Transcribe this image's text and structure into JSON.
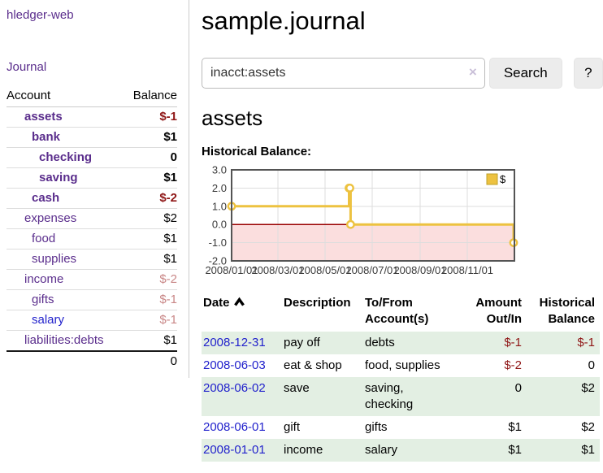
{
  "sidebar": {
    "brand": "hledger-web",
    "journal_label": "Journal",
    "accounts_table": {
      "headers": {
        "account": "Account",
        "balance": "Balance"
      },
      "rows": [
        {
          "name": "assets",
          "indent": 1,
          "bold": true,
          "link": "purple",
          "balance": "$-1",
          "tone": "neg"
        },
        {
          "name": "bank",
          "indent": 2,
          "bold": true,
          "link": "purple",
          "balance": "$1",
          "tone": null
        },
        {
          "name": "checking",
          "indent": 3,
          "bold": true,
          "link": "purple",
          "balance": "0",
          "tone": null
        },
        {
          "name": "saving",
          "indent": 3,
          "bold": true,
          "link": "purple",
          "balance": "$1",
          "tone": null
        },
        {
          "name": "cash",
          "indent": 2,
          "bold": true,
          "link": "purple",
          "balance": "$-2",
          "tone": "neg"
        },
        {
          "name": "expenses",
          "indent": 1,
          "bold": false,
          "link": "purple",
          "balance": "$2",
          "tone": null
        },
        {
          "name": "food",
          "indent": 2,
          "bold": false,
          "link": "purple",
          "balance": "$1",
          "tone": null
        },
        {
          "name": "supplies",
          "indent": 2,
          "bold": false,
          "link": "purple",
          "balance": "$1",
          "tone": null
        },
        {
          "name": "income",
          "indent": 1,
          "bold": false,
          "link": "purple",
          "balance": "$-2",
          "tone": "negsoft"
        },
        {
          "name": "gifts",
          "indent": 2,
          "bold": false,
          "link": "purple",
          "balance": "$-1",
          "tone": "negsoft"
        },
        {
          "name": "salary",
          "indent": 2,
          "bold": false,
          "link": "blue",
          "balance": "$-1",
          "tone": "negsoft"
        },
        {
          "name": "liabilities:debts",
          "indent": 1,
          "bold": false,
          "link": "purple",
          "balance": "$1",
          "tone": null
        }
      ],
      "total": "0"
    }
  },
  "header": {
    "title": "sample.journal"
  },
  "search": {
    "query": "inacct:assets",
    "clear_icon": "×",
    "search_label": "Search",
    "help_label": "?"
  },
  "account_page": {
    "heading": "assets",
    "chart_label": "Historical Balance:"
  },
  "chart_data": {
    "type": "line",
    "step": true,
    "series": [
      {
        "name": "$",
        "color": "#EDC240",
        "points": [
          [
            "2008-01-01",
            1
          ],
          [
            "2008-06-01",
            2
          ],
          [
            "2008-06-02",
            2
          ],
          [
            "2008-06-03",
            0
          ],
          [
            "2008-12-31",
            -1
          ]
        ]
      }
    ],
    "x_range": [
      "2008-01-01",
      "2009-01-01"
    ],
    "y_range": [
      -2,
      3
    ],
    "y_ticks": [
      3,
      2,
      1,
      0,
      -1,
      -2
    ],
    "x_ticks": [
      {
        "date": "2008-01-01",
        "label": "2008/01/01"
      },
      {
        "date": "2008-03-01",
        "label": "2008/03/01"
      },
      {
        "date": "2008-05-01",
        "label": "2008/05/01"
      },
      {
        "date": "2008-07-01",
        "label": "2008/07/01"
      },
      {
        "date": "2008-09-01",
        "label": "2008/09/01"
      },
      {
        "date": "2008-11-01",
        "label": "2008/11/01"
      }
    ],
    "legend": {
      "label": "$",
      "color": "#EDC240",
      "position": "top-right"
    },
    "grid": true,
    "negative_fill": "#FBDEDE",
    "zero_line": "#990000"
  },
  "register_table": {
    "headers": {
      "date": "Date",
      "description": "Description",
      "tofrom": "To/From Account(s)",
      "amount": "Amount Out/In",
      "balance": "Historical Balance"
    },
    "rows": [
      {
        "date": "2008-12-31",
        "description": "pay off",
        "accounts": "debts",
        "amount": "$-1",
        "balance": "$-1"
      },
      {
        "date": "2008-06-03",
        "description": "eat & shop",
        "accounts": "food, supplies",
        "amount": "$-2",
        "balance": "0"
      },
      {
        "date": "2008-06-02",
        "description": "save",
        "accounts": "saving, checking",
        "amount": "0",
        "balance": "$2"
      },
      {
        "date": "2008-06-01",
        "description": "gift",
        "accounts": "gifts",
        "amount": "$1",
        "balance": "$2"
      },
      {
        "date": "2008-01-01",
        "description": "income",
        "accounts": "salary",
        "amount": "$1",
        "balance": "$1"
      }
    ]
  },
  "colors": {
    "link_purple": "#5A2D8C",
    "link_blue": "#2222CC",
    "negative_strong": "#8F1616",
    "negative_soft": "#C98787",
    "row_green": "#E3EFE3",
    "chart_gold": "#EDC240",
    "chart_negative_fill": "#FBDEDE",
    "chart_zero_line": "#990000"
  }
}
